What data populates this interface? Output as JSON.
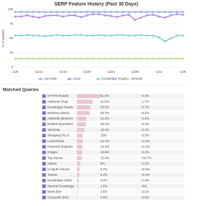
{
  "chart_data": {
    "type": "line",
    "title": "SERP Feature History (Past 30 Days)",
    "y_label": "% of Queries",
    "categories": [
      "11/8",
      null,
      null,
      null,
      "11/12",
      null,
      null,
      null,
      "11/16",
      null,
      null,
      null,
      "11/20",
      null,
      null,
      null,
      "11/24",
      null,
      null,
      null,
      "11/28",
      null,
      null,
      null,
      "12/2",
      null,
      null,
      null,
      "12/6"
    ],
    "ylim": [
      0,
      100
    ],
    "yticks": [
      0,
      25,
      50,
      75,
      100
    ],
    "grid": true,
    "legend": "bottom",
    "series": [
      {
        "name": "Ads Paid",
        "color": "#3b7dd8",
        "values": [
          96,
          96,
          96,
          96,
          96,
          96,
          96,
          96,
          96,
          96,
          96,
          96,
          96,
          96,
          96,
          96,
          96,
          96,
          96,
          96,
          96,
          96,
          96,
          96,
          96,
          96,
          96,
          96,
          96
        ]
      },
      {
        "name": "Local",
        "color": "#8a3fb5",
        "values": [
          88,
          88,
          90,
          88,
          86,
          89,
          90,
          90,
          88,
          90,
          90,
          87,
          90,
          92,
          92,
          90,
          89,
          87,
          90,
          91,
          82,
          86,
          90,
          91,
          88,
          86,
          90,
          92,
          91
        ]
      },
      {
        "name": "Knowledge Graph",
        "color": "#2bb5b0",
        "values": [
          55,
          55,
          56,
          55,
          55,
          54,
          55,
          56,
          55,
          55,
          56,
          56,
          55,
          55,
          56,
          55,
          55,
          56,
          56,
          55,
          55,
          56,
          55,
          55,
          52,
          45,
          50,
          55,
          55
        ]
      },
      {
        "name": "Verticals",
        "color": "#8cc63f",
        "values": [
          15,
          15,
          15,
          15,
          15,
          15,
          15,
          15,
          15,
          15,
          15,
          15,
          15,
          15,
          15,
          15,
          15,
          15,
          15,
          15,
          15,
          15,
          15,
          15,
          15,
          15,
          15,
          15,
          15
        ]
      }
    ]
  },
  "table": {
    "title": "Matched Queries",
    "bar_color": "#e8c6cf",
    "rows": [
      {
        "label": "HTTPS Results",
        "value": 61.6,
        "value_label": "61.6%",
        "change": "-0.2%"
      },
      {
        "label": "AdWords (Top)",
        "value": 41.5,
        "value_label": "41.5%",
        "change": "-1.7%"
      },
      {
        "label": "Knowledge Panels",
        "value": 35.9,
        "value_label": "35.9%",
        "change": "-0.7%"
      },
      {
        "label": "Reviews (Stars)",
        "value": 33.7,
        "value_label": "33.7%",
        "change": "-0.1%"
      },
      {
        "label": "AdWords (Bottom)",
        "value": 24.4,
        "value_label": "24.4%",
        "change": "-2.4%"
      },
      {
        "label": "Related Questions",
        "value": 23.1,
        "value_label": "23.1%",
        "change": "-0.1%"
      },
      {
        "label": "Site-links",
        "value": 19.4,
        "value_label": "19.4%",
        "change": "-0.1%"
      },
      {
        "label": "Shopping (PLA)",
        "value": 15,
        "value_label": "15%",
        "change": "-0.3%"
      },
      {
        "label": "Local Packs",
        "value": 14.7,
        "value_label": "14.7%",
        "change": "+1.5%"
      },
      {
        "label": "Featured Snippets",
        "value": 14.1,
        "value_label": "14.1%",
        "change": "+1.1%"
      },
      {
        "label": "Images",
        "value": 13.5,
        "value_label": "13.5%",
        "change": "-2.4%"
      },
      {
        "label": "Top Stories",
        "value": 12.4,
        "value_label": "12.4%",
        "change": "+34.7%"
      },
      {
        "label": "Videos",
        "value": 9,
        "value_label": "9%",
        "change": "-2.2%"
      },
      {
        "label": "In-depth Articles",
        "value": 6.7,
        "value_label": "6.7%",
        "change": "+0.9%"
      },
      {
        "label": "Tweets",
        "value": 6.2,
        "value_label": "6.2%",
        "change": "+0.3%"
      },
      {
        "label": "Knowledge Cards",
        "value": 4.3,
        "value_label": "4.3%",
        "change": "-1.4%"
      },
      {
        "label": "Medical Knowledge",
        "value": 2.6,
        "value_label": "2.6%",
        "change": "+8%"
      },
      {
        "label": "News Box",
        "value": 1.6,
        "value_label": "1.6%",
        "change": "-2.1%"
      },
      {
        "label": "Carousels (KG)",
        "value": 0.6,
        "value_label": "0.6%",
        "change": "-6.5%"
      }
    ]
  }
}
